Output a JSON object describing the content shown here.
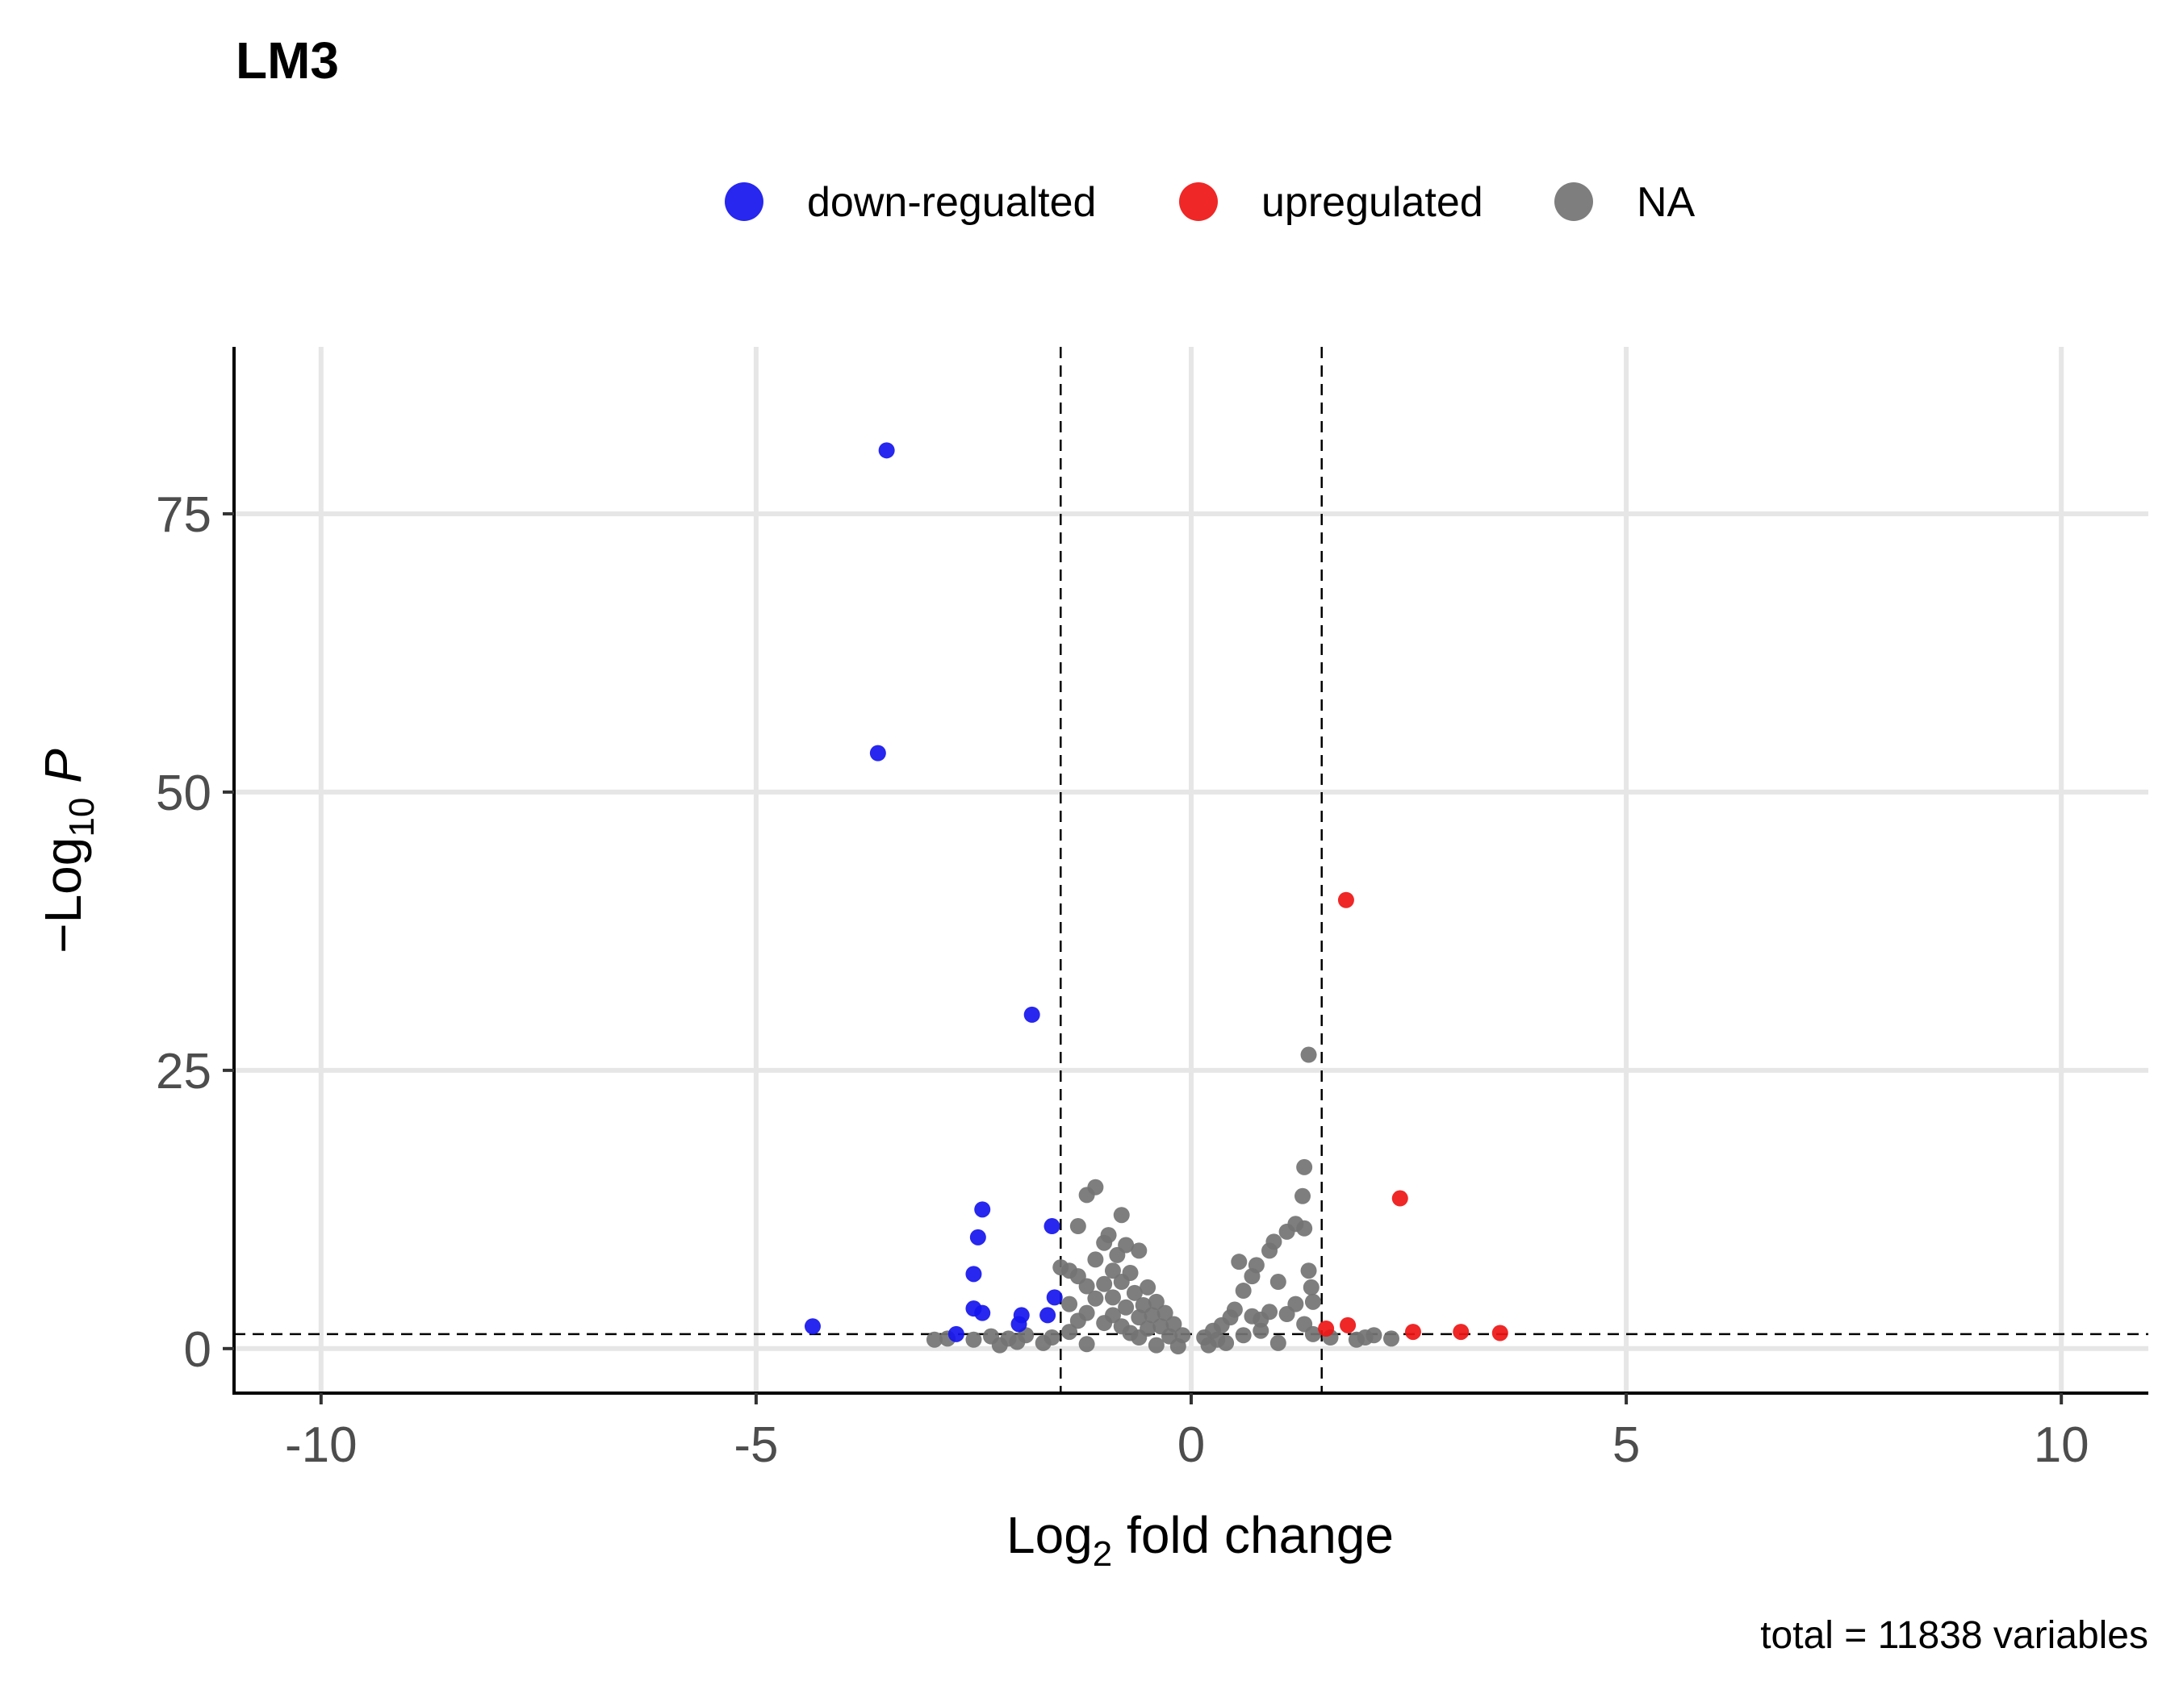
{
  "chart_data": {
    "type": "scatter",
    "title": "LM3",
    "xlabel": {
      "pre": "Log",
      "sub": "2",
      "post": " fold change"
    },
    "ylabel": {
      "pre": "−Log",
      "sub": "10",
      "post": " P"
    },
    "caption": "total = 11838 variables",
    "xlim": [
      -11,
      11
    ],
    "ylim": [
      -4,
      90
    ],
    "x_ticks": [
      -10,
      -5,
      0,
      5,
      10
    ],
    "x_tick_labels": [
      "-10",
      "-5",
      "0",
      "5",
      "10"
    ],
    "y_ticks": [
      0,
      25,
      50,
      75
    ],
    "y_tick_labels": [
      "0",
      "25",
      "50",
      "75"
    ],
    "grid": true,
    "legend_position": "top",
    "cutoff_lines": {
      "x": [
        -1.5,
        1.5
      ],
      "y": [
        1.3
      ]
    },
    "colors": {
      "down": "#1515ee",
      "up": "#ee1515",
      "na": "#737373"
    },
    "legend": [
      {
        "key": "down",
        "label": "down-regualted",
        "color": "#1515ee"
      },
      {
        "key": "up",
        "label": "upregulated",
        "color": "#ee1515"
      },
      {
        "key": "na",
        "label": "NA",
        "color": "#737373"
      }
    ],
    "series": [
      {
        "key": "down",
        "points": [
          [
            -3.5,
            80.7
          ],
          [
            -3.6,
            53.5
          ],
          [
            -1.83,
            30.0
          ],
          [
            -2.4,
            12.5
          ],
          [
            -2.45,
            10.0
          ],
          [
            -2.5,
            6.7
          ],
          [
            -1.6,
            11.0
          ],
          [
            -2.5,
            3.6
          ],
          [
            -2.4,
            3.2
          ],
          [
            -1.57,
            4.6
          ],
          [
            -1.65,
            3.0
          ],
          [
            -1.95,
            3.0
          ],
          [
            -1.98,
            2.2
          ],
          [
            -4.35,
            2.0
          ],
          [
            -2.7,
            1.3
          ]
        ]
      },
      {
        "key": "up",
        "points": [
          [
            1.78,
            40.3
          ],
          [
            2.4,
            13.5
          ],
          [
            1.8,
            2.1
          ],
          [
            1.55,
            1.8
          ],
          [
            2.55,
            1.5
          ],
          [
            3.1,
            1.5
          ],
          [
            3.55,
            1.4
          ]
        ]
      },
      {
        "key": "na",
        "points": [
          [
            1.35,
            26.4
          ],
          [
            1.3,
            16.3
          ],
          [
            1.28,
            13.7
          ],
          [
            1.3,
            10.8
          ],
          [
            1.35,
            7.0
          ],
          [
            1.38,
            5.5
          ],
          [
            1.4,
            4.2
          ],
          [
            1.2,
            11.2
          ],
          [
            1.1,
            10.5
          ],
          [
            0.95,
            9.6
          ],
          [
            0.9,
            8.8
          ],
          [
            0.75,
            7.5
          ],
          [
            0.55,
            7.8
          ],
          [
            0.7,
            6.5
          ],
          [
            0.6,
            5.2
          ],
          [
            1.0,
            6.0
          ],
          [
            1.2,
            4.0
          ],
          [
            1.1,
            3.1
          ],
          [
            1.3,
            2.2
          ],
          [
            0.9,
            3.3
          ],
          [
            0.8,
            2.6
          ],
          [
            0.7,
            2.9
          ],
          [
            0.5,
            3.5
          ],
          [
            0.45,
            2.8
          ],
          [
            0.35,
            2.1
          ],
          [
            0.25,
            1.6
          ],
          [
            0.15,
            1.0
          ],
          [
            0.3,
            0.8
          ],
          [
            0.6,
            1.2
          ],
          [
            1.4,
            1.3
          ],
          [
            1.6,
            1.0
          ],
          [
            2.0,
            1.0
          ],
          [
            2.1,
            1.2
          ],
          [
            2.3,
            0.9
          ],
          [
            1.9,
            0.8
          ],
          [
            1.0,
            0.5
          ],
          [
            0.8,
            1.6
          ],
          [
            0.4,
            0.5
          ],
          [
            0.2,
            0.3
          ],
          [
            -1.1,
            14.5
          ],
          [
            -1.2,
            13.8
          ],
          [
            -0.8,
            12.0
          ],
          [
            -1.3,
            11.0
          ],
          [
            -1.0,
            9.5
          ],
          [
            -0.95,
            10.2
          ],
          [
            -0.75,
            9.3
          ],
          [
            -0.85,
            8.4
          ],
          [
            -0.6,
            8.8
          ],
          [
            -1.1,
            8.0
          ],
          [
            -1.5,
            7.3
          ],
          [
            -1.4,
            7.0
          ],
          [
            -0.9,
            7.0
          ],
          [
            -0.7,
            6.8
          ],
          [
            -1.3,
            6.5
          ],
          [
            -0.8,
            6.0
          ],
          [
            -1.0,
            5.8
          ],
          [
            -1.2,
            5.6
          ],
          [
            -0.5,
            5.5
          ],
          [
            -0.65,
            5.0
          ],
          [
            -0.9,
            4.6
          ],
          [
            -1.1,
            4.5
          ],
          [
            -0.4,
            4.2
          ],
          [
            -0.55,
            3.9
          ],
          [
            -0.75,
            3.7
          ],
          [
            -1.4,
            4.0
          ],
          [
            -0.3,
            3.2
          ],
          [
            -0.45,
            3.0
          ],
          [
            -0.6,
            2.8
          ],
          [
            -0.9,
            3.0
          ],
          [
            -1.2,
            3.2
          ],
          [
            -0.2,
            2.2
          ],
          [
            -0.35,
            2.0
          ],
          [
            -0.5,
            1.8
          ],
          [
            -0.8,
            2.0
          ],
          [
            -1.0,
            2.3
          ],
          [
            -1.3,
            2.5
          ],
          [
            -0.1,
            1.2
          ],
          [
            -0.25,
            1.1
          ],
          [
            -0.6,
            1.0
          ],
          [
            -1.6,
            1.0
          ],
          [
            -1.9,
            1.2
          ],
          [
            -2.1,
            0.9
          ],
          [
            -2.3,
            1.1
          ],
          [
            -2.5,
            0.8
          ],
          [
            -2.8,
            0.9
          ],
          [
            -2.95,
            0.8
          ],
          [
            -2.0,
            0.6
          ],
          [
            -1.7,
            0.5
          ],
          [
            -1.2,
            0.4
          ],
          [
            -0.4,
            0.3
          ],
          [
            -0.15,
            0.2
          ],
          [
            -2.2,
            0.3
          ],
          [
            -1.4,
            1.5
          ],
          [
            -0.7,
            1.4
          ]
        ]
      }
    ]
  }
}
